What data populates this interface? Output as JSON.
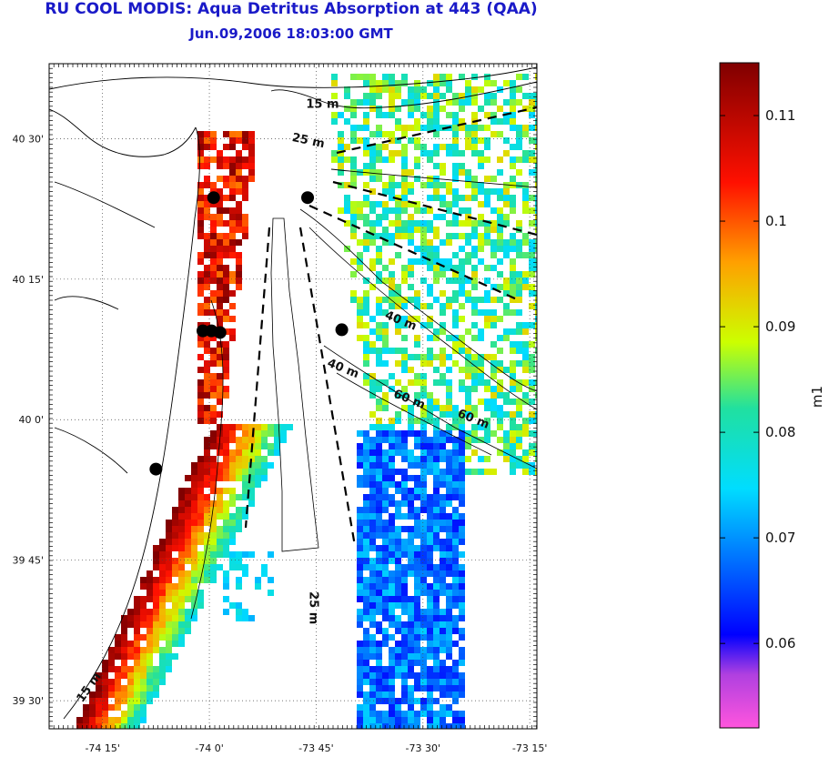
{
  "title": "RU COOL MODIS: Aqua Detritus Absorption at 443 (QAA)",
  "subtitle": "Jun.09,2006 18:03:00 GMT",
  "map": {
    "lon_range": [
      -74.375,
      -73.2333
    ],
    "lat_range": [
      39.45,
      40.6333
    ],
    "lon_ticks": [
      {
        "value": -74.25,
        "label": "-74 15'"
      },
      {
        "value": -74.0,
        "label": "-74 0'"
      },
      {
        "value": -73.75,
        "label": "-73 45'"
      },
      {
        "value": -73.5,
        "label": "-73 30'"
      },
      {
        "value": -73.25,
        "label": "-73 15'"
      }
    ],
    "lat_ticks": [
      {
        "value": 40.5,
        "label": "40 30'"
      },
      {
        "value": 40.25,
        "label": "40 15'"
      },
      {
        "value": 40.0,
        "label": "40 0'"
      },
      {
        "value": 39.75,
        "label": "39 45'"
      },
      {
        "value": 39.5,
        "label": "39 30'"
      }
    ],
    "grid": "dotted",
    "contour_labels": [
      {
        "text": "15 m",
        "lon": -73.735,
        "lat": 40.555
      },
      {
        "text": "25 m",
        "lon": -73.77,
        "lat": 40.49
      },
      {
        "text": "40 m",
        "lon": -73.555,
        "lat": 40.17
      },
      {
        "text": "40 m",
        "lon": -73.69,
        "lat": 40.085
      },
      {
        "text": "60 m",
        "lon": -73.535,
        "lat": 40.03
      },
      {
        "text": "60 m",
        "lon": -73.385,
        "lat": 39.995
      },
      {
        "text": "25 m",
        "lon": -73.765,
        "lat": 39.665
      },
      {
        "text": "15 m",
        "lon": -74.275,
        "lat": 39.52
      }
    ],
    "stations": [
      {
        "lon": -73.99,
        "lat": 40.395
      },
      {
        "lon": -73.77,
        "lat": 40.395
      },
      {
        "lon": -74.015,
        "lat": 40.158
      },
      {
        "lon": -73.995,
        "lat": 40.158
      },
      {
        "lon": -73.975,
        "lat": 40.155
      },
      {
        "lon": -73.69,
        "lat": 40.16
      },
      {
        "lon": -74.125,
        "lat": 39.912
      }
    ]
  },
  "colorbar": {
    "min": 0.052,
    "max": 0.115,
    "label": "m1",
    "ticks": [
      {
        "value": 0.06,
        "label": "0.06"
      },
      {
        "value": 0.07,
        "label": "0.07"
      },
      {
        "value": 0.08,
        "label": "0.08"
      },
      {
        "value": 0.09,
        "label": "0.09"
      },
      {
        "value": 0.1,
        "label": "0.1"
      },
      {
        "value": 0.11,
        "label": "0.11"
      }
    ],
    "colors": {
      "low": "#ff55dd",
      "mid_low": "#0000ff",
      "mid": "#00ffff",
      "mid_high": "#ffff00",
      "high": "#ff0000",
      "top": "#800000"
    }
  }
}
